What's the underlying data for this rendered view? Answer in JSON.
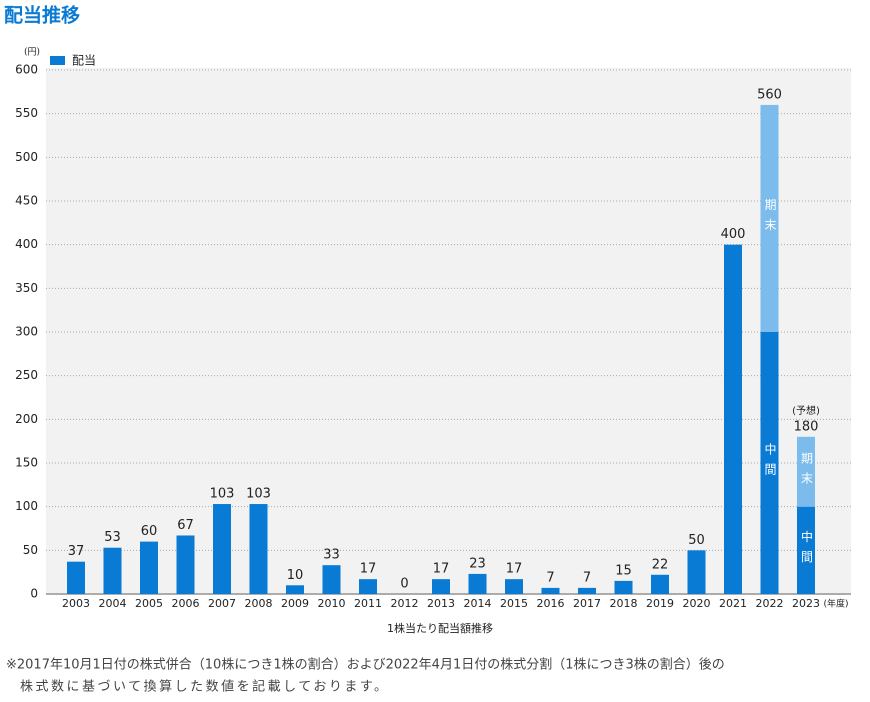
{
  "title": "配当推移",
  "chart_data": {
    "type": "stacked-bar",
    "y_unit": "(円)",
    "x_unit": "(年度)",
    "x_label": "1株当たり配当額推移",
    "categories": [
      "2003",
      "2004",
      "2005",
      "2006",
      "2007",
      "2008",
      "2009",
      "2010",
      "2011",
      "2012",
      "2013",
      "2014",
      "2015",
      "2016",
      "2017",
      "2018",
      "2019",
      "2020",
      "2021",
      "2022",
      "2023"
    ],
    "series": [
      {
        "name": "配当",
        "color": "#0a7bd4",
        "segment_label": "中間",
        "values": [
          37,
          53,
          60,
          67,
          103,
          103,
          10,
          33,
          17,
          0,
          17,
          23,
          17,
          7,
          7,
          15,
          22,
          50,
          400,
          300,
          100
        ]
      },
      {
        "color": "#7cbcec",
        "segment_label": "期末",
        "values": [
          null,
          null,
          null,
          null,
          null,
          null,
          null,
          null,
          null,
          null,
          null,
          null,
          null,
          null,
          null,
          null,
          null,
          null,
          null,
          260,
          80
        ]
      }
    ],
    "total_labels": [
      37,
      53,
      60,
      67,
      103,
      103,
      10,
      33,
      17,
      0,
      17,
      23,
      17,
      7,
      7,
      15,
      22,
      50,
      400,
      560,
      180
    ],
    "forecast": {
      "index": 20,
      "label": "(予想)"
    },
    "ylim": [
      0,
      600
    ],
    "yticks": [
      0,
      50,
      100,
      150,
      200,
      250,
      300,
      350,
      400,
      450,
      500,
      550,
      600
    ],
    "grid": true
  },
  "notes": [
    "※2017年10月1日付の株式併合（10株につき1株の割合）および2022年4月1日付の株式分割（1株につき3株の割合）後の",
    "株式数に基づいて換算した数値を記載しております。"
  ]
}
